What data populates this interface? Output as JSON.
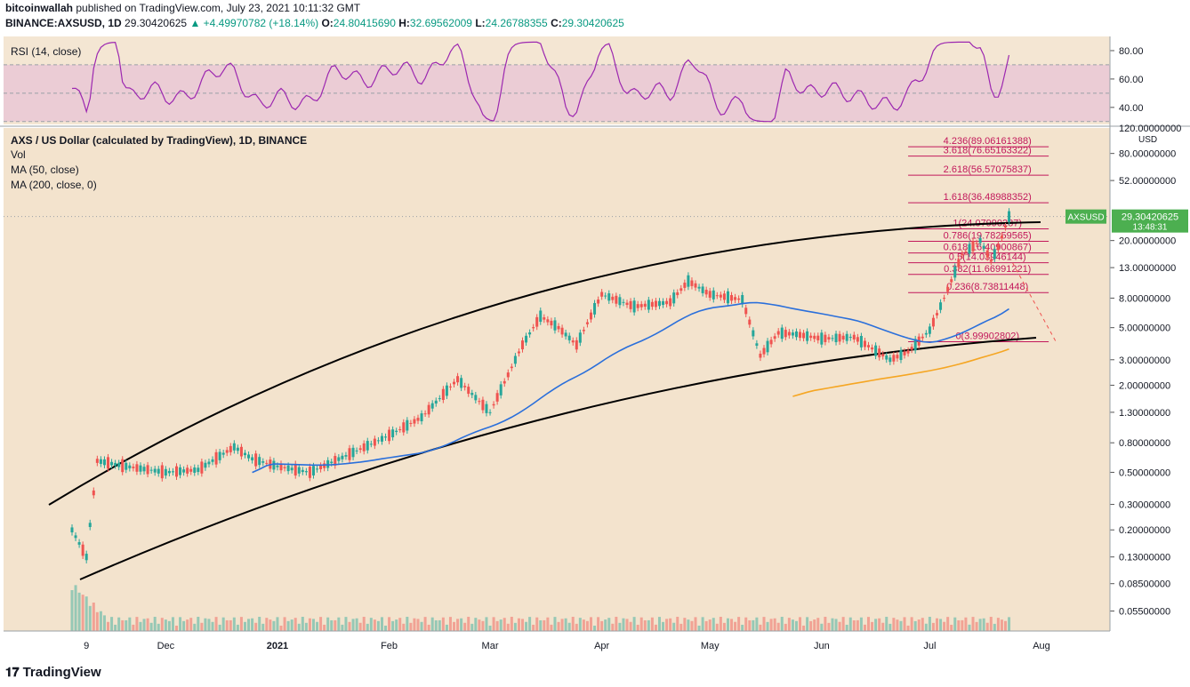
{
  "header": {
    "publisher": "bitcoinwallah",
    "published_on": "published on TradingView.com, July 23, 2021 10:11:32 GMT",
    "symbol_line": "BINANCE:AXSUSD, 1D",
    "last": "29.30420625",
    "change": "▲ +4.49970782 (+18.14%)",
    "o_label": "O:",
    "o": "24.80415690",
    "h_label": "H:",
    "h": "32.69562009",
    "l_label": "L:",
    "l": "24.26788355",
    "c_label": "C:",
    "c": "29.30420625"
  },
  "rsi": {
    "legend": "RSI (14, close)",
    "ticks": [
      "80.00",
      "60.00",
      "40.00"
    ]
  },
  "main": {
    "title": "AXS / US Dollar (calculated by TradingView), 1D, BINANCE",
    "indicators": [
      "Vol",
      "MA (50, close)",
      "MA (200, close, 0)"
    ]
  },
  "price_axis": {
    "unit": "USD",
    "top_label": "120.00000000",
    "ticks": [
      "80.00000000",
      "52.00000000",
      "20.00000000",
      "13.00000000",
      "8.00000000",
      "5.00000000",
      "3.00000000",
      "2.00000000",
      "1.30000000",
      "0.80000000",
      "0.50000000",
      "0.30000000",
      "0.20000000",
      "0.13000000",
      "0.08500000",
      "0.05500000"
    ],
    "symbol_tag": "AXSUSD",
    "price_tag": "29.30420625",
    "countdown": "13:48:31"
  },
  "time_axis": {
    "ticks": [
      "9",
      "Dec",
      "2021",
      "Feb",
      "Mar",
      "Apr",
      "May",
      "Jun",
      "Jul",
      "Aug"
    ]
  },
  "fib_labels": [
    "4.236(89.06161388)",
    "3.618(76.65163322)",
    "2.618(56.57075837)",
    "1.618(36.48988352)",
    "1(24.07990287)",
    "0.786(19.78259565)",
    "0.618(16.40900867)",
    "0.5(14.03946144)",
    "0.382(11.66991221)",
    "0.236(8.73811448)",
    "0(3.99902802)"
  ],
  "footer": {
    "brand": "TradingView"
  },
  "colors": {
    "rsi_line": "#9c27b0",
    "ma50": "#2a6fdb",
    "ma200": "#f5a623",
    "fib": "#c2185b",
    "bull": "#26a69a",
    "bear": "#ef5350",
    "tag": "#4caf50"
  },
  "chart_data": {
    "type": "line",
    "title": "AXS / US Dollar (calculated by TradingView), 1D, BINANCE",
    "scale": "log",
    "ylim": [
      0.04,
      120
    ],
    "x": [
      "2020-11-05",
      "2020-11-09",
      "2020-11-12",
      "2020-11-20",
      "2020-12-01",
      "2020-12-10",
      "2020-12-20",
      "2020-12-25",
      "2021-01-01",
      "2021-01-10",
      "2021-01-20",
      "2021-02-01",
      "2021-02-10",
      "2021-02-20",
      "2021-03-01",
      "2021-03-10",
      "2021-03-15",
      "2021-03-20",
      "2021-03-25",
      "2021-04-01",
      "2021-04-10",
      "2021-04-20",
      "2021-04-25",
      "2021-05-01",
      "2021-05-10",
      "2021-05-15",
      "2021-05-20",
      "2021-05-25",
      "2021-06-01",
      "2021-06-10",
      "2021-06-20",
      "2021-06-25",
      "2021-07-01",
      "2021-07-05",
      "2021-07-10",
      "2021-07-15",
      "2021-07-18",
      "2021-07-20",
      "2021-07-23"
    ],
    "series": [
      {
        "values": [
          0.2,
          0.13,
          0.6,
          0.55,
          0.5,
          0.52,
          0.75,
          0.62,
          0.55,
          0.5,
          0.65,
          0.9,
          1.2,
          2.2,
          1.3,
          3.8,
          6.0,
          5.0,
          3.8,
          8.5,
          7.0,
          7.5,
          10.5,
          8.5,
          7.8,
          3.2,
          4.6,
          4.5,
          4.2,
          4.3,
          3.0,
          3.4,
          4.8,
          8.0,
          16.0,
          20.0,
          14.5,
          18.0,
          29.3
        ]
      }
    ],
    "fib_levels": [
      {
        "ratio": 4.236,
        "price": 89.06161388
      },
      {
        "ratio": 3.618,
        "price": 76.65163322
      },
      {
        "ratio": 2.618,
        "price": 56.57075837
      },
      {
        "ratio": 1.618,
        "price": 36.48988352
      },
      {
        "ratio": 1,
        "price": 24.07990287
      },
      {
        "ratio": 0.786,
        "price": 19.78259565
      },
      {
        "ratio": 0.618,
        "price": 16.40900867
      },
      {
        "ratio": 0.5,
        "price": 14.03946144
      },
      {
        "ratio": 0.382,
        "price": 11.66991221
      },
      {
        "ratio": 0.236,
        "price": 8.73811448
      },
      {
        "ratio": 0,
        "price": 3.99902802
      }
    ],
    "rsi_ylim": [
      28,
      90
    ],
    "rsi_overbought": 70,
    "rsi_oversold": 30
  }
}
